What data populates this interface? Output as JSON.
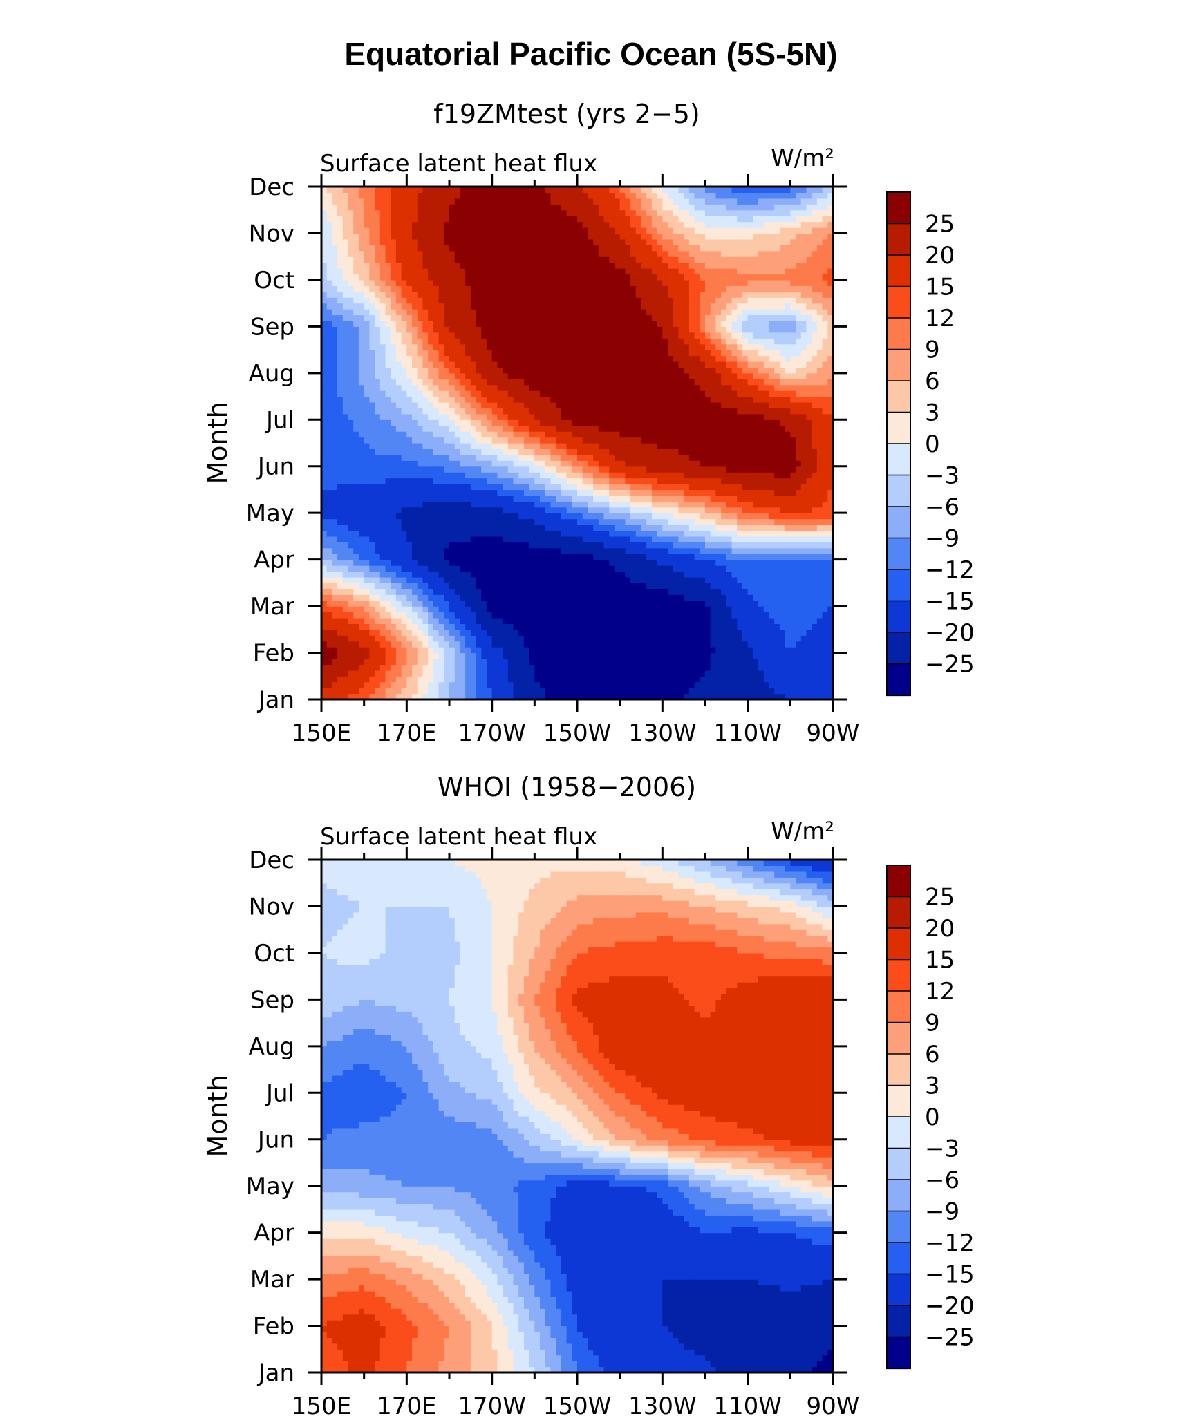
{
  "figure": {
    "title": "Equatorial Pacific Ocean (5S-5N)"
  },
  "colorbar": {
    "labels": [
      "25",
      "20",
      "15",
      "12",
      "9",
      "6",
      "3",
      "0",
      "−3",
      "−6",
      "−9",
      "−12",
      "−15",
      "−20",
      "−25"
    ],
    "levels": [
      -25,
      -20,
      -15,
      -12,
      -9,
      -6,
      -3,
      0,
      3,
      6,
      9,
      12,
      15,
      20,
      25
    ],
    "colors_top_to_bottom": [
      "#8b0000",
      "#b71c00",
      "#dc3000",
      "#fa4d1a",
      "#fd7b4a",
      "#fda07a",
      "#fdc8a8",
      "#fde9da",
      "#d8e8fd",
      "#b3cdfd",
      "#8cadf7",
      "#5286f5",
      "#2560f0",
      "#0e38d6",
      "#0322a8",
      "#00008b"
    ]
  },
  "chart_data": [
    {
      "type": "heatmap",
      "panel_title": "f19ZMtest (yrs 2−5)",
      "left_label": "Surface latent heat flux",
      "units": "W/m²",
      "ylabel": "Month",
      "x_tick_labels": [
        "150E",
        "170E",
        "170W",
        "150W",
        "130W",
        "110W",
        "90W"
      ],
      "y_tick_labels": [
        "Jan",
        "Feb",
        "Mar",
        "Apr",
        "May",
        "Jun",
        "Jul",
        "Aug",
        "Sep",
        "Oct",
        "Nov",
        "Dec"
      ],
      "x_lon": [
        150,
        160,
        170,
        180,
        190,
        200,
        210,
        220,
        230,
        240,
        250,
        260,
        270
      ],
      "y_month": [
        "Jan",
        "Feb",
        "Mar",
        "Apr",
        "May",
        "Jun",
        "Jul",
        "Aug",
        "Sep",
        "Oct",
        "Nov",
        "Dec"
      ],
      "z": [
        [
          18,
          12,
          4,
          -6,
          -15,
          -24,
          -27,
          -27,
          -26,
          -24,
          -22,
          -20,
          -18
        ],
        [
          28,
          22,
          10,
          -4,
          -18,
          -26,
          -27,
          -28,
          -27,
          -26,
          -21,
          -15,
          -18
        ],
        [
          14,
          8,
          -3,
          -15,
          -27,
          -28,
          -28,
          -28,
          -28,
          -26,
          -16,
          -13,
          -15
        ],
        [
          -6,
          -12,
          -19,
          -26,
          -28,
          -28,
          -27,
          -24,
          -19,
          -15,
          -12,
          -13,
          -12
        ],
        [
          -16,
          -18,
          -21,
          -23,
          -22,
          -18,
          -12,
          -6,
          0,
          5,
          12,
          15,
          14
        ],
        [
          -14,
          -13,
          -13,
          -11,
          -7,
          -1,
          9,
          19,
          23,
          25,
          27,
          28,
          15
        ],
        [
          -14,
          -11,
          -7,
          -1,
          10,
          20,
          27,
          28,
          28,
          28,
          27,
          24,
          15
        ],
        [
          -14,
          -8,
          0,
          12,
          24,
          28,
          28,
          28,
          28,
          23,
          12,
          3,
          8
        ],
        [
          -14,
          -8,
          6,
          21,
          27,
          28,
          28,
          28,
          25,
          9,
          -6,
          -8,
          4
        ],
        [
          -4,
          4,
          16,
          23,
          28,
          28,
          28,
          27,
          20,
          12,
          10,
          10,
          13
        ],
        [
          -3,
          8,
          19,
          26,
          28,
          28,
          27,
          20,
          8,
          2,
          2,
          5,
          9
        ],
        [
          2,
          10,
          18,
          24,
          27,
          26,
          21,
          12,
          0,
          -10,
          -15,
          -13,
          -5
        ]
      ]
    },
    {
      "type": "heatmap",
      "panel_title": "WHOI (1958−2006)",
      "left_label": "Surface latent heat flux",
      "units": "W/m²",
      "ylabel": "Month",
      "x_tick_labels": [
        "150E",
        "170E",
        "170W",
        "150W",
        "130W",
        "110W",
        "90W"
      ],
      "y_tick_labels": [
        "Jan",
        "Feb",
        "Mar",
        "Apr",
        "May",
        "Jun",
        "Jul",
        "Aug",
        "Sep",
        "Oct",
        "Nov",
        "Dec"
      ],
      "x_lon": [
        150,
        160,
        170,
        180,
        190,
        200,
        210,
        220,
        230,
        240,
        250,
        260,
        270
      ],
      "y_month": [
        "Jan",
        "Feb",
        "Mar",
        "Apr",
        "May",
        "Jun",
        "Jul",
        "Aug",
        "Sep",
        "Oct",
        "Nov",
        "Dec"
      ],
      "z": [
        [
          13,
          16,
          12,
          8,
          4,
          -3,
          -12,
          -17,
          -18,
          -19,
          -22,
          -24,
          -26
        ],
        [
          15,
          17,
          13,
          9,
          3,
          -6,
          -15,
          -19,
          -20,
          -22,
          -23,
          -23,
          -24
        ],
        [
          10,
          11,
          8,
          4,
          -2,
          -10,
          -17,
          -19,
          -20,
          -20,
          -20,
          -19,
          -20
        ],
        [
          2,
          2,
          -1,
          -3,
          -8,
          -14,
          -18,
          -17,
          -18,
          -15,
          -16,
          -15,
          -13
        ],
        [
          -7,
          -8,
          -9,
          -9,
          -11,
          -13,
          -17,
          -16,
          -14,
          -8,
          -4,
          0,
          4
        ],
        [
          -12,
          -11,
          -11,
          -11,
          -10,
          -5,
          0,
          6,
          10,
          13,
          14,
          16,
          17
        ],
        [
          -13,
          -14,
          -12,
          -7,
          -5,
          2,
          6,
          12,
          16,
          17,
          18,
          18,
          19
        ],
        [
          -9,
          -11,
          -9,
          -4,
          -2,
          6,
          12,
          18,
          19,
          16,
          17,
          18,
          19
        ],
        [
          -4,
          -6,
          -5,
          -3,
          0,
          9,
          16,
          17,
          16,
          14,
          17,
          19,
          20
        ],
        [
          -3,
          -2,
          -4,
          -4,
          0,
          6,
          12,
          13,
          14,
          14,
          12,
          11,
          10
        ],
        [
          -4,
          -3,
          -3,
          -3,
          0,
          4,
          7,
          8,
          8,
          6,
          4,
          2,
          -4
        ],
        [
          -2,
          -1,
          0,
          0,
          1,
          2,
          2,
          1,
          -2,
          -6,
          -11,
          -16,
          -20
        ]
      ]
    }
  ]
}
